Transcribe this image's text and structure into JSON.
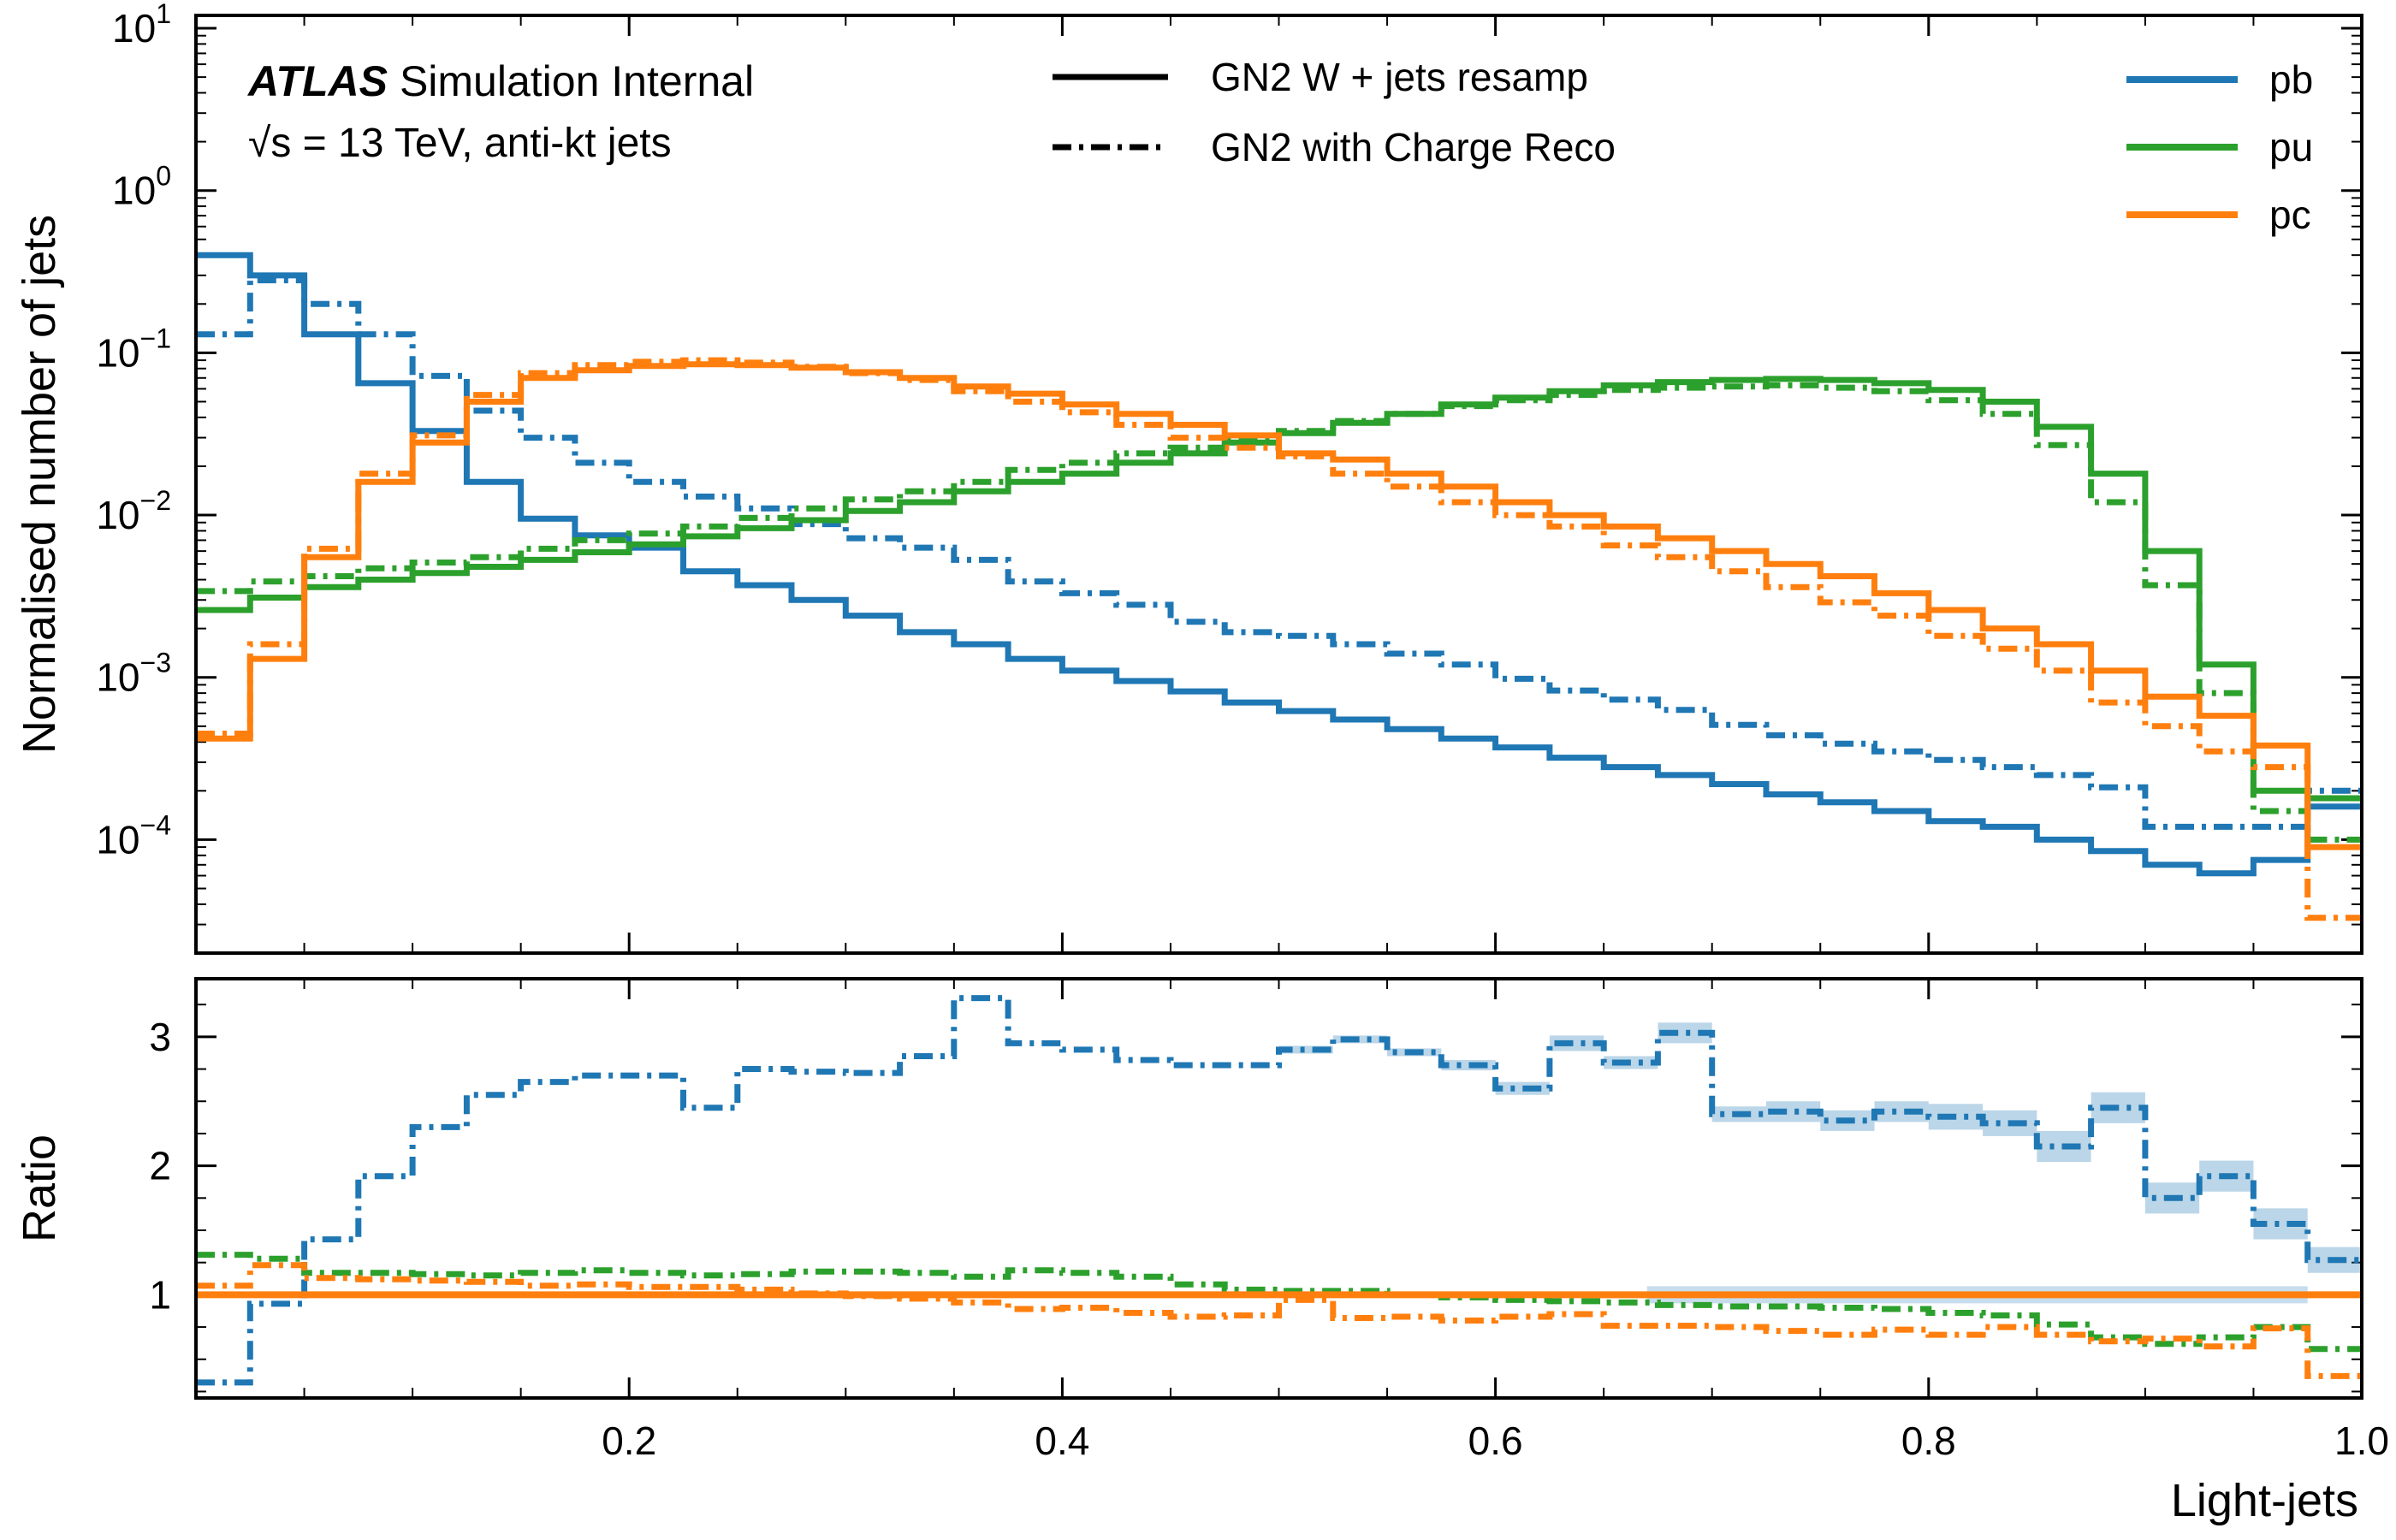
{
  "chart_data": [
    {
      "type": "line",
      "panel": "main",
      "ylabel": "Normalised number of jets",
      "yscale": "log",
      "ylim": [
        2e-05,
        12
      ],
      "xlim": [
        0.0,
        1.0
      ],
      "ytick_labels": [
        "10^-4",
        "10^-3",
        "10^-2",
        "10^-1",
        "10^0",
        "10^1"
      ],
      "atlas_label": "ATLAS",
      "atlas_sublabel": "Simulation Internal",
      "energy_label": "√s = 13 TeV, anti-kt jets",
      "style_legend": [
        {
          "label": "GN2 W + jets resamp",
          "style": "solid"
        },
        {
          "label": "GN2 with Charge Reco",
          "style": "dashdot"
        }
      ],
      "x_edges": [
        0,
        0.025,
        0.05,
        0.075,
        0.1,
        0.125,
        0.15,
        0.175,
        0.2,
        0.225,
        0.25,
        0.275,
        0.3,
        0.325,
        0.35,
        0.375,
        0.4,
        0.425,
        0.45,
        0.475,
        0.5,
        0.525,
        0.55,
        0.575,
        0.6,
        0.625,
        0.65,
        0.675,
        0.7,
        0.725,
        0.75,
        0.775,
        0.8,
        0.825,
        0.85,
        0.875,
        0.9,
        0.925,
        0.95,
        0.975,
        1.0
      ],
      "series": [
        {
          "name": "pb",
          "style": "solid",
          "values": [
            0.4,
            0.3,
            0.13,
            0.065,
            0.033,
            0.016,
            0.0095,
            0.0075,
            0.0063,
            0.0045,
            0.0037,
            0.003,
            0.0024,
            0.0019,
            0.0016,
            0.0013,
            0.0011,
            0.00095,
            0.00082,
            0.0007,
            0.00062,
            0.00055,
            0.00048,
            0.00042,
            0.00037,
            0.00032,
            0.00028,
            0.00025,
            0.00022,
            0.00019,
            0.00017,
            0.00015,
            0.00013,
            0.00012,
            0.0001,
            8.5e-05,
            7e-05,
            6.2e-05,
            7.5e-05,
            0.00016
          ]
        },
        {
          "name": "pb",
          "style": "dashdot",
          "values": [
            0.13,
            0.28,
            0.2,
            0.13,
            0.072,
            0.044,
            0.03,
            0.021,
            0.016,
            0.013,
            0.011,
            0.0088,
            0.0072,
            0.0063,
            0.0053,
            0.0039,
            0.0033,
            0.0028,
            0.0022,
            0.0019,
            0.0018,
            0.0016,
            0.0014,
            0.0012,
            0.00098,
            0.00083,
            0.00073,
            0.00063,
            0.00051,
            0.00044,
            0.00039,
            0.00035,
            0.00031,
            0.00028,
            0.00025,
            0.00021,
            0.00012,
            0.00012,
            0.00012,
            0.0002
          ]
        },
        {
          "name": "pu",
          "style": "solid",
          "values": [
            0.0026,
            0.0031,
            0.0036,
            0.004,
            0.0044,
            0.0048,
            0.0053,
            0.0059,
            0.0066,
            0.0074,
            0.0083,
            0.0093,
            0.0106,
            0.012,
            0.014,
            0.016,
            0.018,
            0.021,
            0.024,
            0.028,
            0.032,
            0.037,
            0.042,
            0.048,
            0.053,
            0.058,
            0.063,
            0.066,
            0.068,
            0.069,
            0.068,
            0.065,
            0.059,
            0.05,
            0.035,
            0.018,
            0.006,
            0.0012,
            0.0002,
            0.00018
          ]
        },
        {
          "name": "pu",
          "style": "dashdot",
          "values": [
            0.0034,
            0.0039,
            0.0042,
            0.0047,
            0.0051,
            0.0055,
            0.0062,
            0.007,
            0.0077,
            0.0085,
            0.0096,
            0.011,
            0.0125,
            0.014,
            0.016,
            0.019,
            0.021,
            0.024,
            0.026,
            0.029,
            0.033,
            0.038,
            0.042,
            0.047,
            0.051,
            0.055,
            0.059,
            0.061,
            0.062,
            0.063,
            0.061,
            0.058,
            0.051,
            0.042,
            0.027,
            0.012,
            0.0037,
            0.0008,
            0.00015,
            0.0001
          ]
        },
        {
          "name": "pc",
          "style": "solid",
          "values": [
            0.00042,
            0.0013,
            0.0055,
            0.016,
            0.028,
            0.05,
            0.07,
            0.078,
            0.083,
            0.085,
            0.084,
            0.081,
            0.076,
            0.07,
            0.062,
            0.056,
            0.048,
            0.042,
            0.036,
            0.031,
            0.024,
            0.022,
            0.018,
            0.015,
            0.012,
            0.01,
            0.0085,
            0.0072,
            0.006,
            0.005,
            0.0042,
            0.0033,
            0.0026,
            0.002,
            0.0016,
            0.0011,
            0.00076,
            0.00058,
            0.00038,
            9e-05
          ]
        },
        {
          "name": "pc",
          "style": "dashdot",
          "values": [
            0.00045,
            0.0016,
            0.0062,
            0.018,
            0.031,
            0.055,
            0.075,
            0.084,
            0.088,
            0.09,
            0.087,
            0.082,
            0.075,
            0.068,
            0.058,
            0.05,
            0.043,
            0.036,
            0.03,
            0.026,
            0.023,
            0.018,
            0.015,
            0.012,
            0.01,
            0.0085,
            0.0065,
            0.0055,
            0.0045,
            0.0036,
            0.0029,
            0.0024,
            0.0018,
            0.0015,
            0.0011,
            0.0007,
            0.0005,
            0.00035,
            0.00028,
            3.3e-05
          ]
        }
      ],
      "legend": [
        {
          "label": "pb",
          "color": "#1f77b4"
        },
        {
          "label": "pu",
          "color": "#2ca02c"
        },
        {
          "label": "pc",
          "color": "#ff7f0e"
        }
      ],
      "legend_position": "top-right"
    },
    {
      "type": "line",
      "panel": "ratio",
      "ylabel": "Ratio",
      "xlabel": "Light-jets",
      "ylim": [
        0.2,
        3.45
      ],
      "yticks": [
        1,
        2,
        3
      ],
      "xticks": [
        0.2,
        0.4,
        0.6,
        0.8,
        1.0
      ],
      "xtick_labels": [
        "0.2",
        "0.4",
        "0.6",
        "0.8",
        "1.0"
      ],
      "reference": {
        "value": 1,
        "color": "#ff7f0e"
      },
      "series": [
        {
          "name": "pb",
          "style": "dashdot",
          "values": [
            0.32,
            0.93,
            1.43,
            1.92,
            2.3,
            2.55,
            2.65,
            2.7,
            2.7,
            2.45,
            2.75,
            2.73,
            2.72,
            2.85,
            3.3,
            2.95,
            2.9,
            2.82,
            2.78,
            2.78,
            2.9,
            2.98,
            2.88,
            2.78,
            2.6,
            2.95,
            2.8,
            3.03,
            2.4,
            2.42,
            2.35,
            2.42,
            2.38,
            2.33,
            2.15,
            2.45,
            1.75,
            1.92,
            1.55,
            1.27
          ],
          "band": [
            0,
            0,
            0,
            0,
            0,
            0,
            0,
            0,
            0,
            0,
            0,
            0,
            0,
            0,
            0,
            0,
            0,
            0,
            0,
            0,
            0.03,
            0.03,
            0.03,
            0.04,
            0.05,
            0.06,
            0.05,
            0.08,
            0.06,
            0.08,
            0.08,
            0.08,
            0.1,
            0.1,
            0.12,
            0.12,
            0.12,
            0.12,
            0.12,
            0.1
          ]
        },
        {
          "name": "pu",
          "style": "dashdot",
          "values": [
            1.31,
            1.28,
            1.17,
            1.17,
            1.16,
            1.15,
            1.17,
            1.19,
            1.17,
            1.15,
            1.16,
            1.18,
            1.18,
            1.17,
            1.14,
            1.19,
            1.17,
            1.14,
            1.08,
            1.04,
            1.03,
            1.03,
            1.0,
            0.98,
            0.96,
            0.95,
            0.94,
            0.92,
            0.91,
            0.91,
            0.9,
            0.89,
            0.86,
            0.84,
            0.77,
            0.67,
            0.62,
            0.67,
            0.75,
            0.58
          ]
        },
        {
          "name": "pc",
          "style": "dashdot",
          "values": [
            1.07,
            1.23,
            1.13,
            1.12,
            1.11,
            1.1,
            1.07,
            1.08,
            1.06,
            1.06,
            1.04,
            1.01,
            0.99,
            0.97,
            0.94,
            0.89,
            0.9,
            0.86,
            0.83,
            0.84,
            0.96,
            0.82,
            0.83,
            0.8,
            0.83,
            0.85,
            0.76,
            0.76,
            0.75,
            0.72,
            0.69,
            0.73,
            0.69,
            0.75,
            0.69,
            0.64,
            0.66,
            0.6,
            0.74,
            0.37
          ]
        }
      ]
    }
  ]
}
